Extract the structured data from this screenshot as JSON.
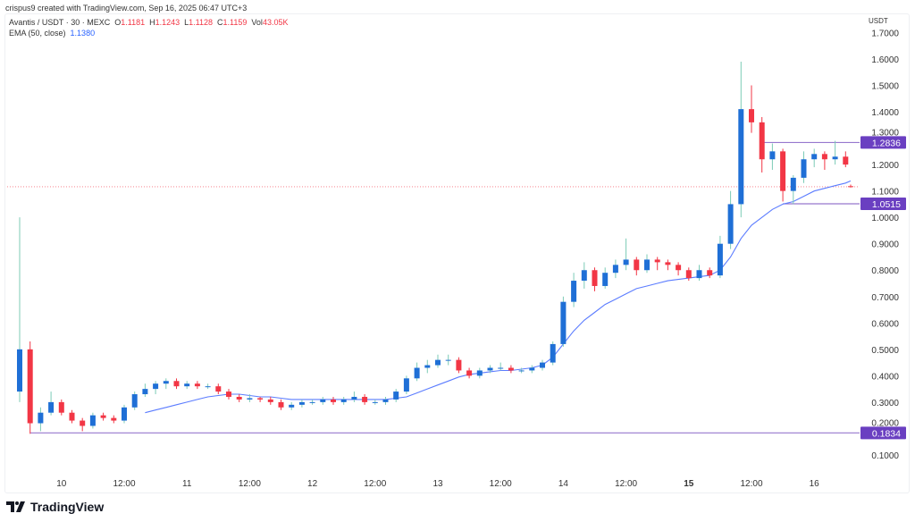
{
  "credit": "crispus9 created with TradingView.com, Sep 16, 2025 06:47 UTC+3",
  "legend": {
    "symbol": "Avantis / USDT · 30 · MEXC",
    "o_label": "O",
    "o": "1.1181",
    "h_label": "H",
    "h": "1.1243",
    "l_label": "L",
    "l": "1.1128",
    "c_label": "C",
    "c": "1.1159",
    "vol_label": "Vol",
    "vol": "43.05K",
    "ema_label": "EMA (50, close)",
    "ema_value": "1.1380"
  },
  "logo": "TradingView",
  "colors": {
    "up_body": "#1f6fd6",
    "up_wick": "#7ccbb6",
    "down": "#f23645",
    "ema": "#5b7cff",
    "hline": "#7e57c2",
    "tag": "#6a3fc1"
  },
  "chart_data": {
    "type": "candlestick",
    "price_unit": "USDT",
    "ylim": [
      0.05,
      1.75
    ],
    "y_ticks": [
      "1.7000",
      "1.6000",
      "1.5000",
      "1.4000",
      "1.3000",
      "1.2000",
      "1.1000",
      "1.0000",
      "0.9000",
      "0.8000",
      "0.7000",
      "0.6000",
      "0.5000",
      "0.4000",
      "0.3000",
      "0.2000",
      "0.1000"
    ],
    "x_ticks": [
      {
        "label": "10",
        "index": 4,
        "bold": false
      },
      {
        "label": "12:00",
        "index": 10,
        "bold": false
      },
      {
        "label": "11",
        "index": 16,
        "bold": false
      },
      {
        "label": "12:00",
        "index": 22,
        "bold": false
      },
      {
        "label": "12",
        "index": 28,
        "bold": false
      },
      {
        "label": "12:00",
        "index": 34,
        "bold": false
      },
      {
        "label": "13",
        "index": 40,
        "bold": false
      },
      {
        "label": "12:00",
        "index": 46,
        "bold": false
      },
      {
        "label": "14",
        "index": 52,
        "bold": false
      },
      {
        "label": "12:00",
        "index": 58,
        "bold": false
      },
      {
        "label": "15",
        "index": 64,
        "bold": true
      },
      {
        "label": "12:00",
        "index": 70,
        "bold": false
      },
      {
        "label": "16",
        "index": 76,
        "bold": false
      }
    ],
    "columns": [
      "time",
      "open",
      "high",
      "low",
      "close",
      "ema50"
    ],
    "rows": [
      [
        "09 16:00",
        0.34,
        1.0,
        0.3,
        0.5,
        null
      ],
      [
        "09 18:00",
        0.5,
        0.53,
        0.18,
        0.22,
        null
      ],
      [
        "09 20:00",
        0.22,
        0.28,
        0.19,
        0.26,
        null
      ],
      [
        "09 22:00",
        0.26,
        0.34,
        0.25,
        0.3,
        null
      ],
      [
        "10 00:00",
        0.3,
        0.31,
        0.25,
        0.26,
        null
      ],
      [
        "10 02:00",
        0.26,
        0.27,
        0.22,
        0.23,
        null
      ],
      [
        "10 04:00",
        0.23,
        0.24,
        0.19,
        0.21,
        null
      ],
      [
        "10 06:00",
        0.21,
        0.26,
        0.2,
        0.25,
        null
      ],
      [
        "10 08:00",
        0.25,
        0.26,
        0.23,
        0.24,
        null
      ],
      [
        "10 10:00",
        0.24,
        0.25,
        0.22,
        0.23,
        null
      ],
      [
        "10 12:00",
        0.23,
        0.29,
        0.22,
        0.28,
        null
      ],
      [
        "10 14:00",
        0.28,
        0.34,
        0.27,
        0.33,
        null
      ],
      [
        "10 16:00",
        0.33,
        0.37,
        0.32,
        0.35,
        0.26
      ],
      [
        "10 18:00",
        0.35,
        0.38,
        0.33,
        0.37,
        0.27
      ],
      [
        "10 20:00",
        0.37,
        0.39,
        0.35,
        0.38,
        0.28
      ],
      [
        "10 22:00",
        0.38,
        0.39,
        0.35,
        0.36,
        0.29
      ],
      [
        "11 00:00",
        0.36,
        0.38,
        0.35,
        0.37,
        0.3
      ],
      [
        "11 02:00",
        0.37,
        0.38,
        0.35,
        0.36,
        0.31
      ],
      [
        "11 04:00",
        0.36,
        0.37,
        0.35,
        0.36,
        0.32
      ],
      [
        "11 06:00",
        0.36,
        0.37,
        0.33,
        0.34,
        0.325
      ],
      [
        "11 08:00",
        0.34,
        0.35,
        0.31,
        0.32,
        0.33
      ],
      [
        "11 10:00",
        0.32,
        0.33,
        0.3,
        0.31,
        0.33
      ],
      [
        "11 12:00",
        0.31,
        0.33,
        0.3,
        0.315,
        0.325
      ],
      [
        "11 14:00",
        0.315,
        0.32,
        0.3,
        0.31,
        0.32
      ],
      [
        "11 16:00",
        0.31,
        0.32,
        0.29,
        0.3,
        0.32
      ],
      [
        "11 18:00",
        0.3,
        0.31,
        0.27,
        0.28,
        0.315
      ],
      [
        "11 20:00",
        0.28,
        0.3,
        0.27,
        0.29,
        0.31
      ],
      [
        "11 22:00",
        0.29,
        0.31,
        0.28,
        0.3,
        0.31
      ],
      [
        "12 00:00",
        0.3,
        0.31,
        0.29,
        0.3,
        0.31
      ],
      [
        "12 02:00",
        0.3,
        0.32,
        0.29,
        0.31,
        0.31
      ],
      [
        "12 04:00",
        0.31,
        0.32,
        0.29,
        0.3,
        0.31
      ],
      [
        "12 06:00",
        0.3,
        0.32,
        0.29,
        0.31,
        0.31
      ],
      [
        "12 08:00",
        0.31,
        0.34,
        0.3,
        0.32,
        0.31
      ],
      [
        "12 10:00",
        0.32,
        0.33,
        0.29,
        0.3,
        0.31
      ],
      [
        "12 12:00",
        0.3,
        0.31,
        0.29,
        0.3,
        0.31
      ],
      [
        "12 14:00",
        0.3,
        0.32,
        0.29,
        0.31,
        0.31
      ],
      [
        "12 16:00",
        0.31,
        0.35,
        0.3,
        0.34,
        0.315
      ],
      [
        "12 18:00",
        0.34,
        0.4,
        0.33,
        0.39,
        0.32
      ],
      [
        "12 20:00",
        0.39,
        0.45,
        0.38,
        0.43,
        0.335
      ],
      [
        "12 22:00",
        0.43,
        0.46,
        0.41,
        0.44,
        0.35
      ],
      [
        "13 00:00",
        0.44,
        0.48,
        0.43,
        0.46,
        0.365
      ],
      [
        "13 02:00",
        0.46,
        0.48,
        0.44,
        0.46,
        0.38
      ],
      [
        "13 04:00",
        0.46,
        0.47,
        0.41,
        0.42,
        0.395
      ],
      [
        "13 06:00",
        0.42,
        0.43,
        0.39,
        0.4,
        0.405
      ],
      [
        "13 08:00",
        0.4,
        0.43,
        0.39,
        0.42,
        0.41
      ],
      [
        "13 10:00",
        0.42,
        0.44,
        0.41,
        0.43,
        0.415
      ],
      [
        "13 12:00",
        0.43,
        0.45,
        0.42,
        0.43,
        0.42
      ],
      [
        "13 14:00",
        0.43,
        0.44,
        0.41,
        0.42,
        0.42
      ],
      [
        "13 16:00",
        0.42,
        0.43,
        0.41,
        0.42,
        0.425
      ],
      [
        "13 18:00",
        0.42,
        0.44,
        0.41,
        0.43,
        0.43
      ],
      [
        "13 20:00",
        0.43,
        0.46,
        0.42,
        0.45,
        0.44
      ],
      [
        "13 22:00",
        0.45,
        0.53,
        0.44,
        0.52,
        0.47
      ],
      [
        "14 00:00",
        0.52,
        0.7,
        0.51,
        0.68,
        0.52
      ],
      [
        "14 02:00",
        0.68,
        0.79,
        0.66,
        0.76,
        0.57
      ],
      [
        "14 04:00",
        0.76,
        0.83,
        0.73,
        0.8,
        0.61
      ],
      [
        "14 06:00",
        0.8,
        0.81,
        0.72,
        0.74,
        0.64
      ],
      [
        "14 08:00",
        0.74,
        0.81,
        0.73,
        0.79,
        0.67
      ],
      [
        "14 10:00",
        0.79,
        0.84,
        0.77,
        0.82,
        0.69
      ],
      [
        "14 12:00",
        0.82,
        0.92,
        0.8,
        0.84,
        0.71
      ],
      [
        "14 14:00",
        0.84,
        0.85,
        0.78,
        0.8,
        0.73
      ],
      [
        "14 16:00",
        0.8,
        0.86,
        0.79,
        0.84,
        0.74
      ],
      [
        "14 18:00",
        0.84,
        0.85,
        0.8,
        0.83,
        0.75
      ],
      [
        "14 20:00",
        0.83,
        0.84,
        0.8,
        0.82,
        0.76
      ],
      [
        "14 22:00",
        0.82,
        0.83,
        0.78,
        0.8,
        0.765
      ],
      [
        "15 00:00",
        0.8,
        0.81,
        0.76,
        0.77,
        0.77
      ],
      [
        "15 02:00",
        0.77,
        0.82,
        0.76,
        0.8,
        0.775
      ],
      [
        "15 04:00",
        0.8,
        0.81,
        0.77,
        0.78,
        0.78
      ],
      [
        "15 06:00",
        0.78,
        0.93,
        0.77,
        0.9,
        0.8
      ],
      [
        "15 08:00",
        0.9,
        1.1,
        0.88,
        1.05,
        0.85
      ],
      [
        "15 10:00",
        1.05,
        1.59,
        1.0,
        1.41,
        0.92
      ],
      [
        "15 12:00",
        1.41,
        1.5,
        1.32,
        1.36,
        0.97
      ],
      [
        "15 14:00",
        1.36,
        1.38,
        1.17,
        1.22,
        1.0
      ],
      [
        "15 16:00",
        1.22,
        1.28,
        1.18,
        1.25,
        1.03
      ],
      [
        "15 18:00",
        1.25,
        1.26,
        1.06,
        1.1,
        1.05
      ],
      [
        "15 20:00",
        1.1,
        1.16,
        1.05,
        1.15,
        1.06
      ],
      [
        "15 22:00",
        1.15,
        1.25,
        1.13,
        1.22,
        1.08
      ],
      [
        "16 00:00",
        1.22,
        1.26,
        1.19,
        1.24,
        1.1
      ],
      [
        "16 02:00",
        1.24,
        1.25,
        1.18,
        1.22,
        1.11
      ],
      [
        "16 04:00",
        1.22,
        1.29,
        1.2,
        1.23,
        1.12
      ],
      [
        "16 06:00",
        1.23,
        1.25,
        1.19,
        1.2,
        1.13
      ],
      [
        "16 06:30",
        1.1181,
        1.1243,
        1.1128,
        1.1159,
        1.138
      ]
    ],
    "horizontal_lines": [
      {
        "price": 1.2836,
        "label": "1.2836",
        "from_index": 71
      },
      {
        "price": 1.0515,
        "label": "1.0515",
        "from_index": 73
      },
      {
        "price": 0.1834,
        "label": "0.1834",
        "from_index": 1
      }
    ],
    "last_price": 1.1159
  }
}
